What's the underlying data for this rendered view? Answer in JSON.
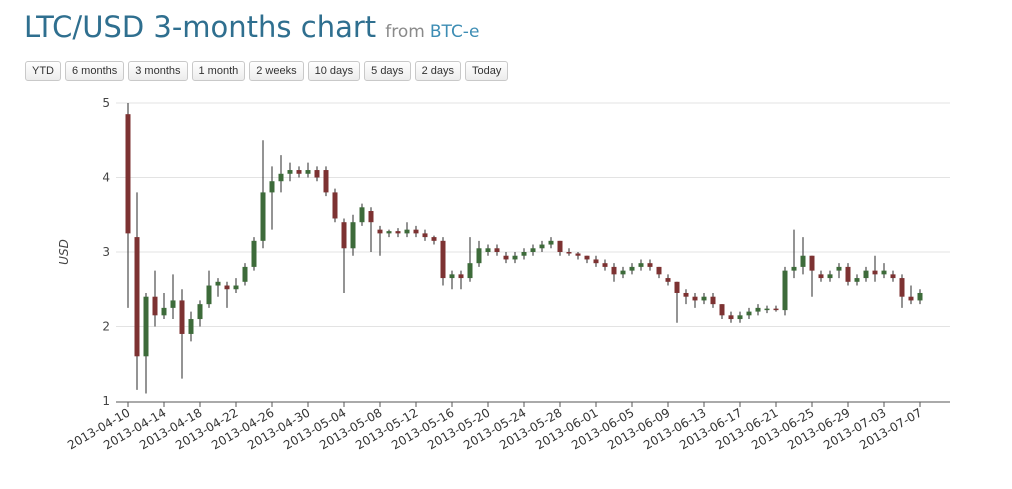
{
  "header": {
    "title": "LTC/USD 3-months chart",
    "from_label": "from",
    "source": "BTC-e"
  },
  "range_buttons": [
    "YTD",
    "6 months",
    "3 months",
    "1 month",
    "2 weeks",
    "10 days",
    "5 days",
    "2 days",
    "Today"
  ],
  "colors": {
    "up": "#3d6b3a",
    "down": "#7d3232",
    "wick": "#2a2a2a",
    "grid": "#e3e3e3",
    "axis": "#555555",
    "title": "#2f6f8f",
    "source": "#3d8db4"
  },
  "chart_data": {
    "type": "candlestick",
    "ylabel": "USD",
    "xlabel": "",
    "ylim": [
      1,
      5
    ],
    "y_ticks": [
      1,
      2,
      3,
      4,
      5
    ],
    "grid": true,
    "x_tick_labels": [
      "2013-04-10",
      "2013-04-14",
      "2013-04-18",
      "2013-04-22",
      "2013-04-26",
      "2013-04-30",
      "2013-05-04",
      "2013-05-08",
      "2013-05-12",
      "2013-05-16",
      "2013-05-20",
      "2013-05-24",
      "2013-05-28",
      "2013-06-01",
      "2013-06-05",
      "2013-06-09",
      "2013-06-13",
      "2013-06-17",
      "2013-06-21",
      "2013-06-25",
      "2013-06-29",
      "2013-07-03",
      "2013-07-07"
    ],
    "x_start": "2013-04-10",
    "x_end": "2013-07-07",
    "ohlc": [
      {
        "date": "2013-04-10",
        "o": 4.85,
        "h": 5.0,
        "l": 2.25,
        "c": 3.25
      },
      {
        "date": "2013-04-11",
        "o": 3.2,
        "h": 3.8,
        "l": 1.15,
        "c": 1.6
      },
      {
        "date": "2013-04-12",
        "o": 1.6,
        "h": 2.45,
        "l": 1.1,
        "c": 2.4
      },
      {
        "date": "2013-04-13",
        "o": 2.4,
        "h": 2.75,
        "l": 2.0,
        "c": 2.15
      },
      {
        "date": "2013-04-14",
        "o": 2.15,
        "h": 2.45,
        "l": 2.1,
        "c": 2.25
      },
      {
        "date": "2013-04-15",
        "o": 2.25,
        "h": 2.7,
        "l": 2.1,
        "c": 2.35
      },
      {
        "date": "2013-04-16",
        "o": 2.35,
        "h": 2.5,
        "l": 1.3,
        "c": 1.9
      },
      {
        "date": "2013-04-17",
        "o": 1.9,
        "h": 2.2,
        "l": 1.8,
        "c": 2.1
      },
      {
        "date": "2013-04-18",
        "o": 2.1,
        "h": 2.35,
        "l": 2.0,
        "c": 2.3
      },
      {
        "date": "2013-04-19",
        "o": 2.3,
        "h": 2.75,
        "l": 2.25,
        "c": 2.55
      },
      {
        "date": "2013-04-20",
        "o": 2.55,
        "h": 2.65,
        "l": 2.4,
        "c": 2.6
      },
      {
        "date": "2013-04-21",
        "o": 2.55,
        "h": 2.6,
        "l": 2.25,
        "c": 2.5
      },
      {
        "date": "2013-04-22",
        "o": 2.5,
        "h": 2.65,
        "l": 2.45,
        "c": 2.55
      },
      {
        "date": "2013-04-23",
        "o": 2.6,
        "h": 2.85,
        "l": 2.55,
        "c": 2.8
      },
      {
        "date": "2013-04-24",
        "o": 2.8,
        "h": 3.2,
        "l": 2.75,
        "c": 3.15
      },
      {
        "date": "2013-04-25",
        "o": 3.15,
        "h": 4.5,
        "l": 3.05,
        "c": 3.8
      },
      {
        "date": "2013-04-26",
        "o": 3.8,
        "h": 4.15,
        "l": 3.3,
        "c": 3.95
      },
      {
        "date": "2013-04-27",
        "o": 3.95,
        "h": 4.3,
        "l": 3.8,
        "c": 4.05
      },
      {
        "date": "2013-04-28",
        "o": 4.05,
        "h": 4.2,
        "l": 3.95,
        "c": 4.1
      },
      {
        "date": "2013-04-29",
        "o": 4.1,
        "h": 4.15,
        "l": 4.0,
        "c": 4.05
      },
      {
        "date": "2013-04-30",
        "o": 4.05,
        "h": 4.2,
        "l": 4.0,
        "c": 4.1
      },
      {
        "date": "2013-05-01",
        "o": 4.1,
        "h": 4.15,
        "l": 3.95,
        "c": 4.0
      },
      {
        "date": "2013-05-02",
        "o": 4.1,
        "h": 4.15,
        "l": 3.75,
        "c": 3.8
      },
      {
        "date": "2013-05-03",
        "o": 3.8,
        "h": 3.85,
        "l": 3.4,
        "c": 3.45
      },
      {
        "date": "2013-05-04",
        "o": 3.4,
        "h": 3.45,
        "l": 2.45,
        "c": 3.05
      },
      {
        "date": "2013-05-05",
        "o": 3.05,
        "h": 3.5,
        "l": 2.95,
        "c": 3.4
      },
      {
        "date": "2013-05-06",
        "o": 3.4,
        "h": 3.65,
        "l": 3.35,
        "c": 3.6
      },
      {
        "date": "2013-05-07",
        "o": 3.55,
        "h": 3.6,
        "l": 3.0,
        "c": 3.4
      },
      {
        "date": "2013-05-08",
        "o": 3.3,
        "h": 3.35,
        "l": 2.95,
        "c": 3.25
      },
      {
        "date": "2013-05-09",
        "o": 3.25,
        "h": 3.3,
        "l": 3.2,
        "c": 3.28
      },
      {
        "date": "2013-05-10",
        "o": 3.28,
        "h": 3.32,
        "l": 3.2,
        "c": 3.25
      },
      {
        "date": "2013-05-11",
        "o": 3.25,
        "h": 3.4,
        "l": 3.2,
        "c": 3.3
      },
      {
        "date": "2013-05-12",
        "o": 3.3,
        "h": 3.35,
        "l": 3.2,
        "c": 3.25
      },
      {
        "date": "2013-05-13",
        "o": 3.25,
        "h": 3.3,
        "l": 3.15,
        "c": 3.2
      },
      {
        "date": "2013-05-14",
        "o": 3.2,
        "h": 3.22,
        "l": 3.1,
        "c": 3.15
      },
      {
        "date": "2013-05-15",
        "o": 3.15,
        "h": 3.2,
        "l": 2.55,
        "c": 2.65
      },
      {
        "date": "2013-05-16",
        "o": 2.65,
        "h": 2.75,
        "l": 2.5,
        "c": 2.7
      },
      {
        "date": "2013-05-17",
        "o": 2.7,
        "h": 2.75,
        "l": 2.5,
        "c": 2.65
      },
      {
        "date": "2013-05-18",
        "o": 2.65,
        "h": 3.2,
        "l": 2.6,
        "c": 2.85
      },
      {
        "date": "2013-05-19",
        "o": 2.85,
        "h": 3.15,
        "l": 2.8,
        "c": 3.05
      },
      {
        "date": "2013-05-20",
        "o": 3.0,
        "h": 3.1,
        "l": 2.95,
        "c": 3.05
      },
      {
        "date": "2013-05-21",
        "o": 3.05,
        "h": 3.1,
        "l": 2.95,
        "c": 3.0
      },
      {
        "date": "2013-05-22",
        "o": 2.95,
        "h": 3.0,
        "l": 2.85,
        "c": 2.9
      },
      {
        "date": "2013-05-23",
        "o": 2.9,
        "h": 3.0,
        "l": 2.85,
        "c": 2.95
      },
      {
        "date": "2013-05-24",
        "o": 2.95,
        "h": 3.05,
        "l": 2.9,
        "c": 3.0
      },
      {
        "date": "2013-05-25",
        "o": 3.0,
        "h": 3.1,
        "l": 2.95,
        "c": 3.05
      },
      {
        "date": "2013-05-26",
        "o": 3.05,
        "h": 3.15,
        "l": 3.0,
        "c": 3.1
      },
      {
        "date": "2013-05-27",
        "o": 3.1,
        "h": 3.2,
        "l": 3.05,
        "c": 3.15
      },
      {
        "date": "2013-05-28",
        "o": 3.15,
        "h": 3.15,
        "l": 2.95,
        "c": 3.0
      },
      {
        "date": "2013-05-29",
        "o": 3.0,
        "h": 3.05,
        "l": 2.95,
        "c": 2.98
      },
      {
        "date": "2013-05-30",
        "o": 2.98,
        "h": 3.0,
        "l": 2.9,
        "c": 2.95
      },
      {
        "date": "2013-05-31",
        "o": 2.95,
        "h": 2.95,
        "l": 2.85,
        "c": 2.9
      },
      {
        "date": "2013-06-01",
        "o": 2.9,
        "h": 2.95,
        "l": 2.8,
        "c": 2.85
      },
      {
        "date": "2013-06-02",
        "o": 2.85,
        "h": 2.9,
        "l": 2.75,
        "c": 2.8
      },
      {
        "date": "2013-06-03",
        "o": 2.8,
        "h": 2.85,
        "l": 2.6,
        "c": 2.7
      },
      {
        "date": "2013-06-04",
        "o": 2.7,
        "h": 2.8,
        "l": 2.65,
        "c": 2.75
      },
      {
        "date": "2013-06-05",
        "o": 2.75,
        "h": 2.85,
        "l": 2.7,
        "c": 2.8
      },
      {
        "date": "2013-06-06",
        "o": 2.8,
        "h": 2.9,
        "l": 2.75,
        "c": 2.85
      },
      {
        "date": "2013-06-07",
        "o": 2.85,
        "h": 2.9,
        "l": 2.75,
        "c": 2.8
      },
      {
        "date": "2013-06-08",
        "o": 2.8,
        "h": 2.8,
        "l": 2.65,
        "c": 2.7
      },
      {
        "date": "2013-06-09",
        "o": 2.65,
        "h": 2.7,
        "l": 2.55,
        "c": 2.6
      },
      {
        "date": "2013-06-10",
        "o": 2.6,
        "h": 2.6,
        "l": 2.05,
        "c": 2.45
      },
      {
        "date": "2013-06-11",
        "o": 2.45,
        "h": 2.5,
        "l": 2.3,
        "c": 2.4
      },
      {
        "date": "2013-06-12",
        "o": 2.4,
        "h": 2.45,
        "l": 2.25,
        "c": 2.35
      },
      {
        "date": "2013-06-13",
        "o": 2.35,
        "h": 2.45,
        "l": 2.3,
        "c": 2.4
      },
      {
        "date": "2013-06-14",
        "o": 2.4,
        "h": 2.45,
        "l": 2.25,
        "c": 2.3
      },
      {
        "date": "2013-06-15",
        "o": 2.3,
        "h": 2.3,
        "l": 2.1,
        "c": 2.15
      },
      {
        "date": "2013-06-16",
        "o": 2.15,
        "h": 2.2,
        "l": 2.05,
        "c": 2.1
      },
      {
        "date": "2013-06-17",
        "o": 2.1,
        "h": 2.2,
        "l": 2.05,
        "c": 2.15
      },
      {
        "date": "2013-06-18",
        "o": 2.15,
        "h": 2.25,
        "l": 2.1,
        "c": 2.2
      },
      {
        "date": "2013-06-19",
        "o": 2.2,
        "h": 2.3,
        "l": 2.15,
        "c": 2.25
      },
      {
        "date": "2013-06-20",
        "o": 2.22,
        "h": 2.28,
        "l": 2.18,
        "c": 2.24
      },
      {
        "date": "2013-06-21",
        "o": 2.24,
        "h": 2.28,
        "l": 2.2,
        "c": 2.22
      },
      {
        "date": "2013-06-22",
        "o": 2.22,
        "h": 2.8,
        "l": 2.15,
        "c": 2.75
      },
      {
        "date": "2013-06-23",
        "o": 2.75,
        "h": 3.3,
        "l": 2.65,
        "c": 2.8
      },
      {
        "date": "2013-06-24",
        "o": 2.8,
        "h": 3.2,
        "l": 2.7,
        "c": 2.95
      },
      {
        "date": "2013-06-25",
        "o": 2.95,
        "h": 2.95,
        "l": 2.4,
        "c": 2.75
      },
      {
        "date": "2013-06-26",
        "o": 2.7,
        "h": 2.75,
        "l": 2.6,
        "c": 2.65
      },
      {
        "date": "2013-06-27",
        "o": 2.65,
        "h": 2.75,
        "l": 2.6,
        "c": 2.7
      },
      {
        "date": "2013-06-28",
        "o": 2.75,
        "h": 2.85,
        "l": 2.65,
        "c": 2.8
      },
      {
        "date": "2013-06-29",
        "o": 2.8,
        "h": 2.85,
        "l": 2.55,
        "c": 2.6
      },
      {
        "date": "2013-06-30",
        "o": 2.6,
        "h": 2.7,
        "l": 2.55,
        "c": 2.65
      },
      {
        "date": "2013-07-01",
        "o": 2.65,
        "h": 2.8,
        "l": 2.6,
        "c": 2.75
      },
      {
        "date": "2013-07-02",
        "o": 2.75,
        "h": 2.95,
        "l": 2.6,
        "c": 2.7
      },
      {
        "date": "2013-07-03",
        "o": 2.7,
        "h": 2.85,
        "l": 2.65,
        "c": 2.75
      },
      {
        "date": "2013-07-04",
        "o": 2.7,
        "h": 2.75,
        "l": 2.6,
        "c": 2.65
      },
      {
        "date": "2013-07-05",
        "o": 2.65,
        "h": 2.7,
        "l": 2.25,
        "c": 2.4
      },
      {
        "date": "2013-07-06",
        "o": 2.4,
        "h": 2.55,
        "l": 2.3,
        "c": 2.35
      },
      {
        "date": "2013-07-07",
        "o": 2.35,
        "h": 2.5,
        "l": 2.3,
        "c": 2.45
      }
    ]
  }
}
